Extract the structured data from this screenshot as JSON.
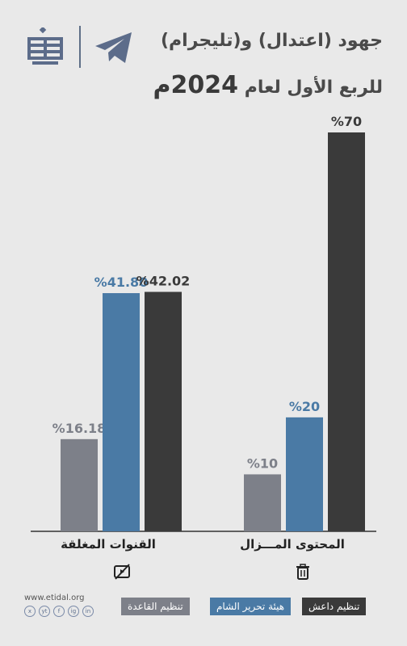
{
  "title": {
    "line1": "جهود (اعتدال) و(تليجرام)",
    "line2_prefix": "للربع الأول لعام ",
    "line2_year": "2024م"
  },
  "website": "www.etidal.org",
  "socials": [
    "x",
    "yt",
    "f",
    "ig",
    "in"
  ],
  "legend": [
    {
      "label": "تنظيم داعش",
      "color": "#3a3a3a"
    },
    {
      "label": "هيئة تحرير الشام",
      "color": "#4a7aa5"
    },
    {
      "label": "تنظيم القاعدة",
      "color": "#7d8089"
    }
  ],
  "categories": [
    {
      "label": "القنوات المغلقة",
      "icon": "video-off-icon"
    },
    {
      "label": "المحتوى المـــزال",
      "icon": "trash-icon"
    }
  ],
  "chart_data": {
    "type": "bar",
    "categories": [
      "القنوات المغلقة",
      "المحتوى المزال"
    ],
    "series": [
      {
        "name": "تنظيم القاعدة",
        "values": [
          16.18,
          10
        ],
        "color": "#7d8089"
      },
      {
        "name": "هيئة تحرير الشام",
        "values": [
          41.8,
          20
        ],
        "color": "#4a7aa5"
      },
      {
        "name": "تنظيم داعش",
        "values": [
          42.02,
          70
        ],
        "color": "#3a3a3a"
      }
    ],
    "value_labels": [
      [
        "%16.18",
        "%41.80",
        "%42.02"
      ],
      [
        "%10",
        "%20",
        "%70"
      ]
    ],
    "ylim": [
      0,
      70
    ],
    "grid": false
  }
}
